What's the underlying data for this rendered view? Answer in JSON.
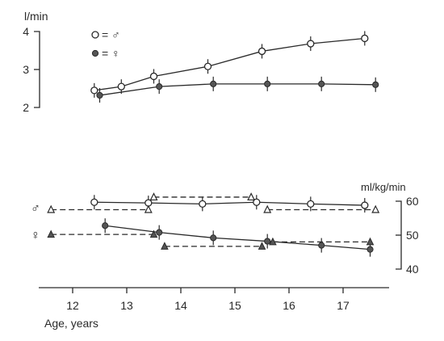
{
  "chart_data": [
    {
      "type": "line",
      "ylabel": "l/min",
      "ylim": [
        2,
        4
      ],
      "y_ticks": [
        "2",
        "3",
        "4"
      ],
      "legend": [
        {
          "marker": "open-circle",
          "text": "= ♂"
        },
        {
          "marker": "filled-circle",
          "text": "= ♀"
        }
      ],
      "legend_placement": "top-left",
      "series": [
        {
          "marker": "open-circle",
          "x": [
            12.4,
            12.9,
            13.5,
            14.5,
            15.5,
            16.4,
            17.4
          ],
          "values": [
            2.45,
            2.55,
            2.82,
            3.08,
            3.48,
            3.68,
            3.82
          ]
        },
        {
          "marker": "filled-circle",
          "x": [
            12.5,
            13.6,
            14.6,
            15.6,
            16.6,
            17.6
          ],
          "values": [
            2.32,
            2.55,
            2.62,
            2.62,
            2.62,
            2.6
          ]
        }
      ]
    },
    {
      "type": "line",
      "ylabel": "ml/kg/min",
      "ylim": [
        40,
        60
      ],
      "y_ticks": [
        "40",
        "50",
        "60"
      ],
      "xlabel": "Age, years",
      "xlim": [
        11.3,
        17.9
      ],
      "x_ticks": [
        "12",
        "13",
        "14",
        "15",
        "16",
        "17"
      ],
      "row_labels": [
        "♂",
        "♀"
      ],
      "series": [
        {
          "group": "♂",
          "marker": "open-circle",
          "style": "solid",
          "x": [
            12.4,
            13.4,
            14.4,
            15.4,
            16.4,
            17.4
          ],
          "values": [
            59.7,
            59.5,
            59.2,
            59.7,
            59.2,
            58.8
          ]
        },
        {
          "group": "♂",
          "marker": "open-triangle",
          "style": "dashed",
          "x": [
            11.6,
            13.4
          ],
          "values": [
            57.5,
            57.5
          ]
        },
        {
          "group": "♂",
          "marker": "open-triangle",
          "style": "dashed",
          "x": [
            13.5,
            15.3
          ],
          "values": [
            61.2,
            61.2
          ]
        },
        {
          "group": "♂",
          "marker": "open-triangle",
          "style": "dashed",
          "x": [
            15.6,
            17.6
          ],
          "values": [
            57.5,
            57.5
          ]
        },
        {
          "group": "♀",
          "marker": "filled-circle",
          "style": "solid",
          "x": [
            12.6,
            13.6,
            14.6,
            15.6,
            16.6,
            17.5
          ],
          "values": [
            52.8,
            50.8,
            49.2,
            48.2,
            47.0,
            45.8
          ]
        },
        {
          "group": "♀",
          "marker": "filled-triangle",
          "style": "dashed",
          "x": [
            11.6,
            13.5
          ],
          "values": [
            50.2,
            50.2
          ]
        },
        {
          "group": "♀",
          "marker": "filled-triangle",
          "style": "dashed",
          "x": [
            13.7,
            15.5
          ],
          "values": [
            46.7,
            46.7
          ]
        },
        {
          "group": "♀",
          "marker": "filled-triangle",
          "style": "dashed",
          "x": [
            15.7,
            17.5
          ],
          "values": [
            48.0,
            48.0
          ]
        }
      ]
    }
  ]
}
